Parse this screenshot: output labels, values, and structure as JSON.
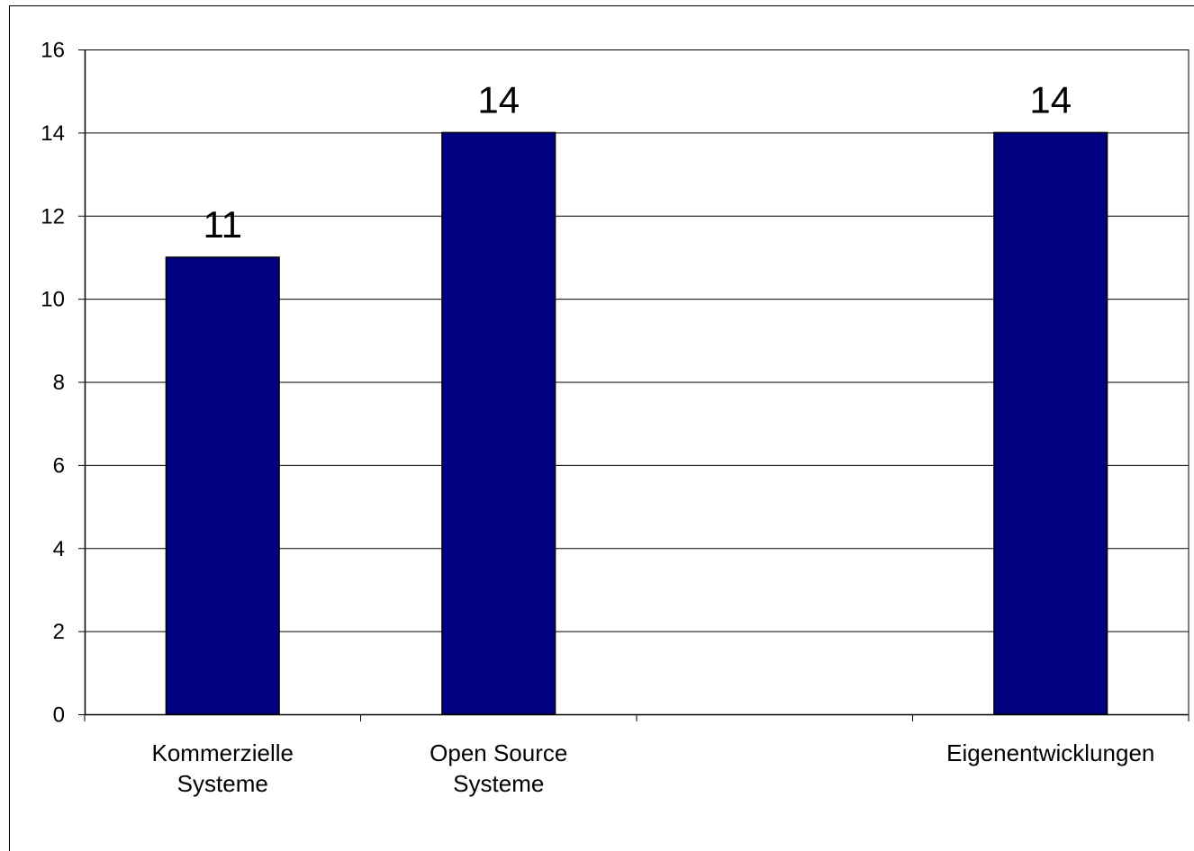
{
  "chart_data": {
    "type": "bar",
    "categories": [
      [
        "Kommerzielle",
        "Systeme"
      ],
      [
        "Open Source",
        "Systeme"
      ],
      [
        ""
      ],
      [
        "Eigenentwicklungen"
      ]
    ],
    "values": [
      11,
      14,
      null,
      14
    ],
    "data_labels": [
      "11",
      "14",
      "",
      "14"
    ],
    "y_ticks": [
      "0",
      "2",
      "4",
      "6",
      "8",
      "10",
      "12",
      "14",
      "16"
    ],
    "ylim": [
      0,
      16
    ],
    "grid": true,
    "bar_color": "#000080",
    "title": "",
    "xlabel": "",
    "ylabel": ""
  }
}
